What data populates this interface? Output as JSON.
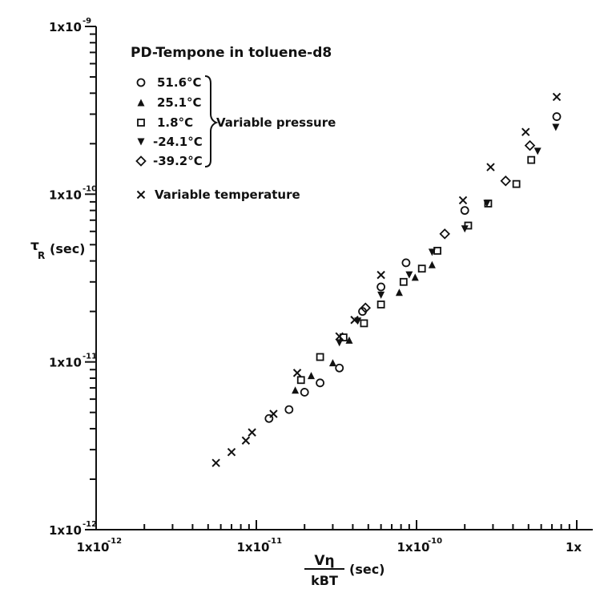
{
  "chart_data": {
    "type": "scatter",
    "title": "PD-Tempone in toluene-d8",
    "x_scale": "log",
    "y_scale": "log",
    "xlim": [
      1e-12,
      1e-09
    ],
    "ylim": [
      1e-12,
      1e-09
    ],
    "grid": false,
    "legend_position": "top-left",
    "xlabel": {
      "numerator": "Vη",
      "denominator": "kBT",
      "unit": "(sec)"
    },
    "ylabel": {
      "symbol": "τ",
      "subscript": "R",
      "unit": "(sec)"
    },
    "x_ticks": [
      {
        "value": 1e-12,
        "label": "1x10",
        "exp": "-12"
      },
      {
        "value": 1e-11,
        "label": "1x10",
        "exp": "-11"
      },
      {
        "value": 1e-10,
        "label": "1x10",
        "exp": "-10"
      },
      {
        "value": 1e-09,
        "label": "1x",
        "exp": ""
      }
    ],
    "y_ticks": [
      {
        "value": 1e-12,
        "label": "1x10",
        "exp": "-12"
      },
      {
        "value": 1e-11,
        "label": "1x10",
        "exp": "-11"
      },
      {
        "value": 1e-10,
        "label": "1x10",
        "exp": "-10"
      },
      {
        "value": 1e-09,
        "label": "1x10",
        "exp": "-9"
      }
    ],
    "brace_label": "Variable pressure",
    "series": [
      {
        "name": "51.6°C",
        "marker": "circle",
        "x": [
          1.2e-11,
          1.6e-11,
          2e-11,
          2.5e-11,
          3.3e-11,
          4.6e-11,
          6e-11,
          8.6e-11,
          2e-10,
          7.5e-10
        ],
        "y": [
          4.6e-12,
          5.2e-12,
          6.6e-12,
          7.5e-12,
          9.2e-12,
          2e-11,
          2.8e-11,
          3.9e-11,
          8e-11,
          2.9e-10
        ]
      },
      {
        "name": "25.1°C",
        "marker": "triangle-up",
        "x": [
          1.75e-11,
          2.2e-11,
          3e-11,
          3.8e-11,
          7.8e-11,
          9.8e-11,
          1.25e-10
        ],
        "y": [
          6.8e-12,
          8.3e-12,
          9.9e-12,
          1.35e-11,
          2.6e-11,
          3.2e-11,
          3.8e-11
        ]
      },
      {
        "name": "1.8°C",
        "marker": "square",
        "x": [
          1.9e-11,
          2.5e-11,
          3.5e-11,
          4.7e-11,
          6e-11,
          8.3e-11,
          1.08e-10,
          1.35e-10,
          2.1e-10,
          2.8e-10,
          4.2e-10,
          5.2e-10
        ],
        "y": [
          7.8e-12,
          1.07e-11,
          1.4e-11,
          1.7e-11,
          2.2e-11,
          3e-11,
          3.6e-11,
          4.6e-11,
          6.5e-11,
          8.8e-11,
          1.15e-10,
          1.6e-10
        ]
      },
      {
        "name": "-24.1°C",
        "marker": "triangle-down",
        "x": [
          3.3e-11,
          4.3e-11,
          6e-11,
          9e-11,
          1.25e-10,
          2e-10,
          2.75e-10,
          5.7e-10,
          7.4e-10
        ],
        "y": [
          1.3e-11,
          1.75e-11,
          2.5e-11,
          3.3e-11,
          4.5e-11,
          6.2e-11,
          8.8e-11,
          1.8e-10,
          2.5e-10
        ]
      },
      {
        "name": "-39.2°C",
        "marker": "diamond",
        "x": [
          4.8e-11,
          1.5e-10,
          3.6e-10,
          5.1e-10
        ],
        "y": [
          2.1e-11,
          5.8e-11,
          1.2e-10,
          1.95e-10
        ]
      },
      {
        "name": "Variable temperature",
        "marker": "x",
        "x": [
          5.6e-12,
          7e-12,
          8.6e-12,
          9.4e-12,
          1.28e-11,
          1.8e-11,
          3.3e-11,
          4.1e-11,
          6e-11,
          1.95e-10,
          2.9e-10,
          4.8e-10,
          7.5e-10
        ],
        "y": [
          2.5e-12,
          2.9e-12,
          3.4e-12,
          3.8e-12,
          4.9e-12,
          8.6e-12,
          1.42e-11,
          1.78e-11,
          3.3e-11,
          9.2e-11,
          1.45e-10,
          2.35e-10,
          3.8e-10
        ]
      }
    ]
  }
}
